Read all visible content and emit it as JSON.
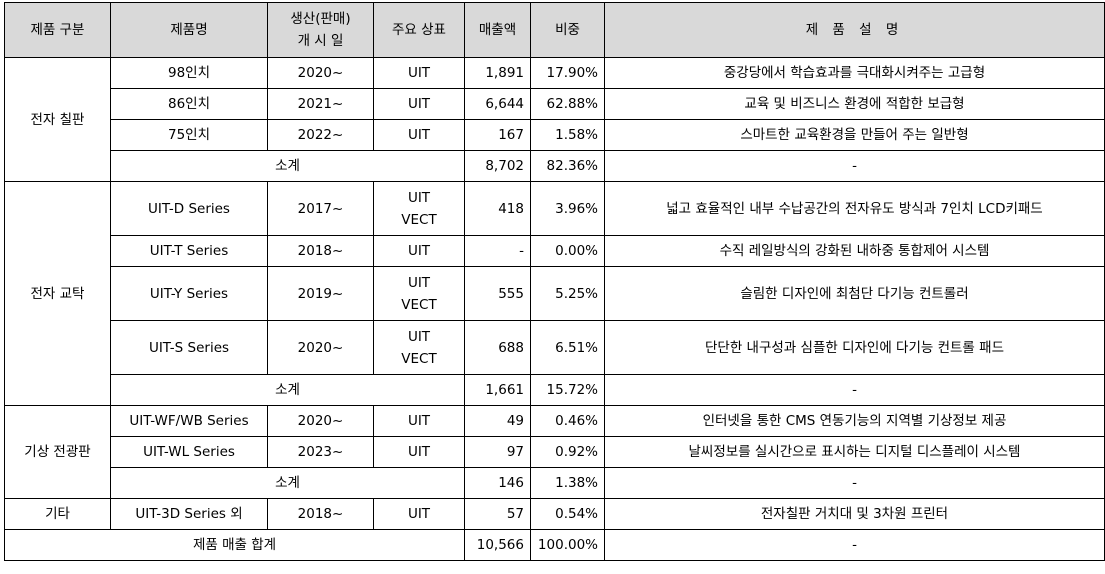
{
  "headers": {
    "category": "제품 구분",
    "product": "제품명",
    "launch_line1": "생산(판매)",
    "launch_line2": "개 시 일",
    "brand": "주요 상표",
    "sales": "매출액",
    "share": "비중",
    "description": "제 품 설 명"
  },
  "groups": [
    {
      "category": "전자 칠판",
      "rows": [
        {
          "product": "98인치",
          "launch": "2020~",
          "brand": [
            "UIT"
          ],
          "sales": "1,891",
          "share": "17.90%",
          "description": "중강당에서 학습효과를 극대화시켜주는 고급형"
        },
        {
          "product": "86인치",
          "launch": "2021~",
          "brand": [
            "UIT"
          ],
          "sales": "6,644",
          "share": "62.88%",
          "description": "교육 및 비즈니스 환경에 적합한 보급형"
        },
        {
          "product": "75인치",
          "launch": "2022~",
          "brand": [
            "UIT"
          ],
          "sales": "167",
          "share": "1.58%",
          "description": "스마트한 교육환경을 만들어 주는 일반형"
        }
      ],
      "subtotal": {
        "label": "소계",
        "sales": "8,702",
        "share": "82.36%",
        "description": "-"
      }
    },
    {
      "category": "전자 교탁",
      "rows": [
        {
          "product": "UIT-D Series",
          "launch": "2017~",
          "brand": [
            "UIT",
            "VECT"
          ],
          "sales": "418",
          "share": "3.96%",
          "description": "넓고 효율적인 내부 수납공간의 전자유도 방식과 7인치 LCD키패드"
        },
        {
          "product": "UIT-T Series",
          "launch": "2018~",
          "brand": [
            "UIT"
          ],
          "sales": "-",
          "share": "0.00%",
          "description": "수직 레일방식의 강화된 내하중 통합제어 시스템"
        },
        {
          "product": "UIT-Y Series",
          "launch": "2019~",
          "brand": [
            "UIT",
            "VECT"
          ],
          "sales": "555",
          "share": "5.25%",
          "description": "슬림한 디자인에 최첨단 다기능 컨트롤러"
        },
        {
          "product": "UIT-S Series",
          "launch": "2020~",
          "brand": [
            "UIT",
            "VECT"
          ],
          "sales": "688",
          "share": "6.51%",
          "description": "단단한 내구성과 심플한 디자인에 다기능 컨트롤 패드"
        }
      ],
      "subtotal": {
        "label": "소계",
        "sales": "1,661",
        "share": "15.72%",
        "description": "-"
      }
    },
    {
      "category": "기상 전광판",
      "rows": [
        {
          "product": "UIT-WF/WB Series",
          "launch": "2020~",
          "brand": [
            "UIT"
          ],
          "sales": "49",
          "share": "0.46%",
          "description": "인터넷을 통한 CMS 연동기능의 지역별 기상정보 제공"
        },
        {
          "product": "UIT-WL Series",
          "launch": "2023~",
          "brand": [
            "UIT"
          ],
          "sales": "97",
          "share": "0.92%",
          "description": "날씨정보를 실시간으로 표시하는 디지털 디스플레이 시스템"
        }
      ],
      "subtotal": {
        "label": "소계",
        "sales": "146",
        "share": "1.38%",
        "description": "-"
      }
    },
    {
      "category": "기타",
      "rows": [
        {
          "product": "UIT-3D Series 외",
          "launch": "2018~",
          "brand": [
            "UIT"
          ],
          "sales": "57",
          "share": "0.54%",
          "description": "전자칠판 거치대 및 3차원 프린터"
        }
      ]
    }
  ],
  "total": {
    "label": "제품 매출 합계",
    "sales": "10,566",
    "share": "100.00%",
    "description": "-"
  }
}
